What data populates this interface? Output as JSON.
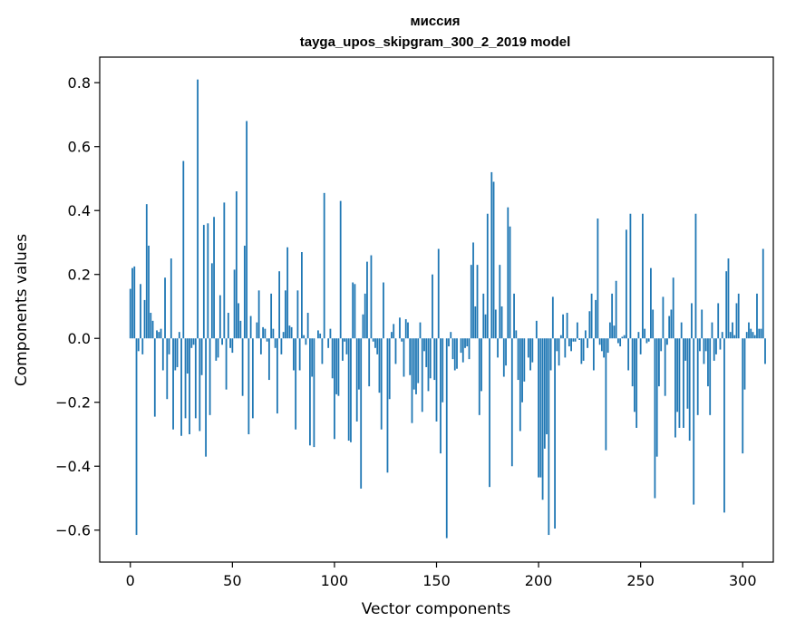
{
  "chart_data": {
    "type": "bar",
    "title": "миссия",
    "subtitle": "tayga_upos_skipgram_300_2_2019 model",
    "xlabel": "Vector components",
    "ylabel": "Components values",
    "xlim": [
      -15,
      315
    ],
    "ylim": [
      -0.7,
      0.88
    ],
    "xticks": [
      0,
      50,
      100,
      150,
      200,
      250,
      300
    ],
    "xtick_labels": [
      "0",
      "50",
      "100",
      "150",
      "200",
      "250",
      "300"
    ],
    "yticks": [
      -0.6,
      -0.4,
      -0.2,
      0.0,
      0.2,
      0.4,
      0.6,
      0.8
    ],
    "ytick_labels": [
      "−0.6",
      "−0.4",
      "−0.2",
      "0.0",
      "0.2",
      "0.4",
      "0.6",
      "0.8"
    ],
    "color": "#1f77b4",
    "values": [
      0.155,
      0.22,
      0.225,
      -0.615,
      -0.04,
      0.17,
      -0.05,
      0.12,
      0.42,
      0.29,
      0.08,
      0.055,
      -0.245,
      0.025,
      0.02,
      0.03,
      -0.1,
      0.19,
      -0.19,
      -0.05,
      0.25,
      -0.285,
      -0.1,
      -0.09,
      0.02,
      -0.305,
      0.555,
      -0.25,
      -0.11,
      -0.3,
      -0.03,
      -0.02,
      -0.25,
      0.81,
      -0.29,
      -0.115,
      0.355,
      -0.37,
      0.36,
      -0.24,
      0.235,
      0.38,
      -0.07,
      -0.06,
      0.135,
      -0.02,
      0.425,
      -0.16,
      0.08,
      -0.03,
      -0.045,
      0.215,
      0.46,
      0.11,
      0.055,
      -0.18,
      0.29,
      0.68,
      -0.3,
      0.07,
      -0.25,
      0.0,
      0.05,
      0.15,
      -0.05,
      0.035,
      0.03,
      -0.01,
      -0.13,
      0.14,
      0.03,
      -0.03,
      -0.235,
      0.21,
      -0.05,
      0.02,
      0.15,
      0.285,
      0.04,
      0.035,
      -0.1,
      -0.285,
      0.15,
      -0.1,
      0.27,
      0.01,
      -0.02,
      0.08,
      -0.335,
      -0.12,
      -0.34,
      0.0,
      0.025,
      0.015,
      -0.08,
      0.455,
      0.0,
      -0.03,
      0.03,
      -0.125,
      -0.315,
      -0.175,
      -0.18,
      0.43,
      -0.07,
      -0.01,
      -0.05,
      -0.32,
      -0.325,
      0.175,
      0.17,
      -0.26,
      -0.16,
      -0.47,
      0.075,
      0.14,
      0.24,
      -0.15,
      0.26,
      -0.01,
      -0.03,
      -0.05,
      -0.17,
      -0.285,
      0.175,
      0.0,
      -0.42,
      -0.19,
      0.02,
      0.045,
      -0.08,
      0.0,
      0.065,
      -0.01,
      -0.12,
      0.06,
      0.05,
      -0.115,
      -0.265,
      -0.16,
      -0.175,
      -0.14,
      0.05,
      -0.23,
      -0.04,
      -0.09,
      -0.165,
      -0.125,
      0.2,
      -0.13,
      -0.26,
      0.28,
      -0.36,
      -0.2,
      0.0,
      -0.625,
      -0.025,
      0.02,
      -0.065,
      -0.1,
      -0.095,
      0.0,
      -0.045,
      -0.075,
      -0.03,
      -0.025,
      -0.065,
      0.23,
      0.3,
      0.1,
      0.23,
      -0.24,
      -0.165,
      0.14,
      0.075,
      0.39,
      -0.465,
      0.52,
      0.49,
      0.09,
      -0.06,
      0.23,
      0.1,
      -0.12,
      -0.085,
      0.41,
      0.35,
      -0.4,
      0.14,
      0.025,
      -0.13,
      -0.29,
      -0.2,
      -0.135,
      0.0,
      -0.06,
      -0.1,
      -0.075,
      0.0,
      0.055,
      -0.435,
      -0.435,
      -0.505,
      -0.345,
      -0.3,
      -0.615,
      -0.1,
      0.13,
      -0.595,
      -0.04,
      -0.085,
      0.01,
      0.075,
      -0.06,
      0.08,
      -0.025,
      -0.04,
      -0.01,
      -0.01,
      0.05,
      -0.005,
      -0.08,
      -0.07,
      0.025,
      -0.03,
      0.085,
      0.14,
      -0.1,
      0.12,
      0.375,
      -0.02,
      -0.04,
      -0.06,
      -0.35,
      -0.045,
      0.05,
      0.14,
      0.04,
      0.18,
      -0.015,
      -0.025,
      0.005,
      0.01,
      0.34,
      -0.1,
      0.39,
      -0.15,
      -0.23,
      -0.28,
      0.02,
      -0.05,
      0.39,
      0.03,
      -0.015,
      -0.01,
      0.22,
      0.09,
      -0.5,
      -0.37,
      -0.15,
      -0.04,
      0.13,
      -0.18,
      -0.02,
      0.07,
      0.09,
      0.19,
      -0.31,
      -0.23,
      -0.28,
      0.05,
      -0.28,
      -0.07,
      -0.22,
      -0.32,
      0.11,
      -0.52,
      0.39,
      -0.24,
      -0.04,
      0.09,
      -0.08,
      -0.04,
      -0.15,
      -0.24,
      0.05,
      -0.07,
      -0.05,
      0.11,
      -0.035,
      0.02,
      -0.545,
      0.21,
      0.25,
      0.02,
      0.05,
      0.01,
      0.11,
      0.14,
      0.0,
      -0.36,
      -0.16,
      0.02,
      0.05,
      0.03,
      0.02,
      0.01,
      0.14,
      0.03,
      0.03,
      0.28,
      -0.08,
      0.0
    ]
  }
}
